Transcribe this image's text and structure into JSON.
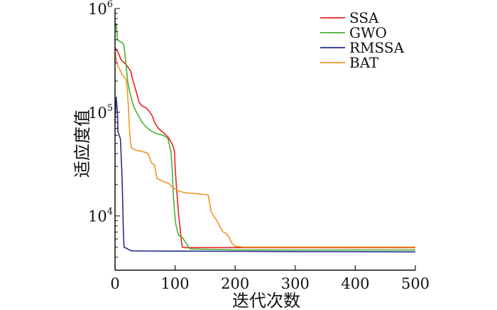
{
  "chart_data": {
    "type": "line",
    "title": "",
    "xlabel": "迭代次数",
    "ylabel": "适应度值",
    "xlim": [
      0,
      500
    ],
    "ylim": [
      3000,
      1000000
    ],
    "yscale": "log",
    "grid": false,
    "legend_position": "top-right",
    "x_ticks": [
      0,
      100,
      200,
      300,
      400,
      500
    ],
    "y_ticks": [
      {
        "value": 10000,
        "base": "10",
        "exp": "4"
      },
      {
        "value": 100000,
        "base": "10",
        "exp": "5"
      },
      {
        "value": 1000000,
        "base": "10",
        "exp": "6"
      }
    ],
    "series": [
      {
        "name": "SSA",
        "color": "#e8211d",
        "points": [
          [
            0,
            420000
          ],
          [
            5,
            380000
          ],
          [
            10,
            320000
          ],
          [
            18,
            290000
          ],
          [
            22,
            270000
          ],
          [
            26,
            250000
          ],
          [
            30,
            200000
          ],
          [
            35,
            160000
          ],
          [
            40,
            125000
          ],
          [
            45,
            115000
          ],
          [
            52,
            110000
          ],
          [
            58,
            100000
          ],
          [
            62,
            92000
          ],
          [
            66,
            80000
          ],
          [
            72,
            70000
          ],
          [
            80,
            64000
          ],
          [
            88,
            58000
          ],
          [
            93,
            52000
          ],
          [
            96,
            48000
          ],
          [
            99,
            42000
          ],
          [
            100,
            30000
          ],
          [
            102,
            20000
          ],
          [
            104,
            14000
          ],
          [
            106,
            10000
          ],
          [
            108,
            8000
          ],
          [
            110,
            6000
          ],
          [
            112,
            5000
          ],
          [
            115,
            4950
          ],
          [
            130,
            4950
          ],
          [
            200,
            4950
          ],
          [
            300,
            4950
          ],
          [
            400,
            4950
          ],
          [
            445,
            4950
          ],
          [
            500,
            4950
          ]
        ]
      },
      {
        "name": "GWO",
        "color": "#48b133",
        "points": [
          [
            0,
            650000
          ],
          [
            2,
            720000
          ],
          [
            4,
            500000
          ],
          [
            8,
            480000
          ],
          [
            12,
            470000
          ],
          [
            15,
            440000
          ],
          [
            18,
            300000
          ],
          [
            21,
            200000
          ],
          [
            24,
            160000
          ],
          [
            28,
            130000
          ],
          [
            32,
            110000
          ],
          [
            38,
            95000
          ],
          [
            45,
            80000
          ],
          [
            52,
            72000
          ],
          [
            60,
            66000
          ],
          [
            70,
            62000
          ],
          [
            80,
            60000
          ],
          [
            88,
            56000
          ],
          [
            93,
            42000
          ],
          [
            95,
            30000
          ],
          [
            97,
            16000
          ],
          [
            99,
            11000
          ],
          [
            101,
            8500
          ],
          [
            103,
            7500
          ],
          [
            106,
            6500
          ],
          [
            112,
            6200
          ],
          [
            118,
            5500
          ],
          [
            125,
            4800
          ],
          [
            200,
            4700
          ],
          [
            300,
            4700
          ],
          [
            400,
            4700
          ],
          [
            500,
            4700
          ]
        ]
      },
      {
        "name": "RMSSA",
        "color": "#262f8f",
        "points": [
          [
            0,
            80000
          ],
          [
            2,
            140000
          ],
          [
            4,
            100000
          ],
          [
            5,
            65000
          ],
          [
            7,
            60000
          ],
          [
            9,
            55000
          ],
          [
            10,
            40000
          ],
          [
            11,
            30000
          ],
          [
            12,
            20000
          ],
          [
            13,
            12000
          ],
          [
            14,
            7000
          ],
          [
            15,
            5000
          ],
          [
            20,
            4850
          ],
          [
            25,
            4650
          ],
          [
            30,
            4600
          ],
          [
            100,
            4580
          ],
          [
            200,
            4560
          ],
          [
            300,
            4540
          ],
          [
            400,
            4520
          ],
          [
            500,
            4500
          ]
        ]
      },
      {
        "name": "BAT",
        "color": "#f29322",
        "points": [
          [
            0,
            380000
          ],
          [
            3,
            300000
          ],
          [
            6,
            270000
          ],
          [
            9,
            250000
          ],
          [
            12,
            230000
          ],
          [
            15,
            220000
          ],
          [
            18,
            210000
          ],
          [
            20,
            180000
          ],
          [
            22,
            120000
          ],
          [
            24,
            70000
          ],
          [
            26,
            50000
          ],
          [
            28,
            45000
          ],
          [
            35,
            43000
          ],
          [
            45,
            42000
          ],
          [
            55,
            40000
          ],
          [
            58,
            36000
          ],
          [
            60,
            33000
          ],
          [
            62,
            32000
          ],
          [
            66,
            31000
          ],
          [
            68,
            26000
          ],
          [
            70,
            23000
          ],
          [
            80,
            21500
          ],
          [
            90,
            20500
          ],
          [
            95,
            19000
          ],
          [
            105,
            17500
          ],
          [
            115,
            16800
          ],
          [
            130,
            16500
          ],
          [
            155,
            16000
          ],
          [
            160,
            11000
          ],
          [
            165,
            9800
          ],
          [
            170,
            9000
          ],
          [
            175,
            7800
          ],
          [
            180,
            7000
          ],
          [
            185,
            6800
          ],
          [
            190,
            6200
          ],
          [
            195,
            5400
          ],
          [
            200,
            5100
          ],
          [
            215,
            5000
          ],
          [
            300,
            5000
          ],
          [
            400,
            5000
          ],
          [
            500,
            5000
          ]
        ]
      }
    ]
  }
}
